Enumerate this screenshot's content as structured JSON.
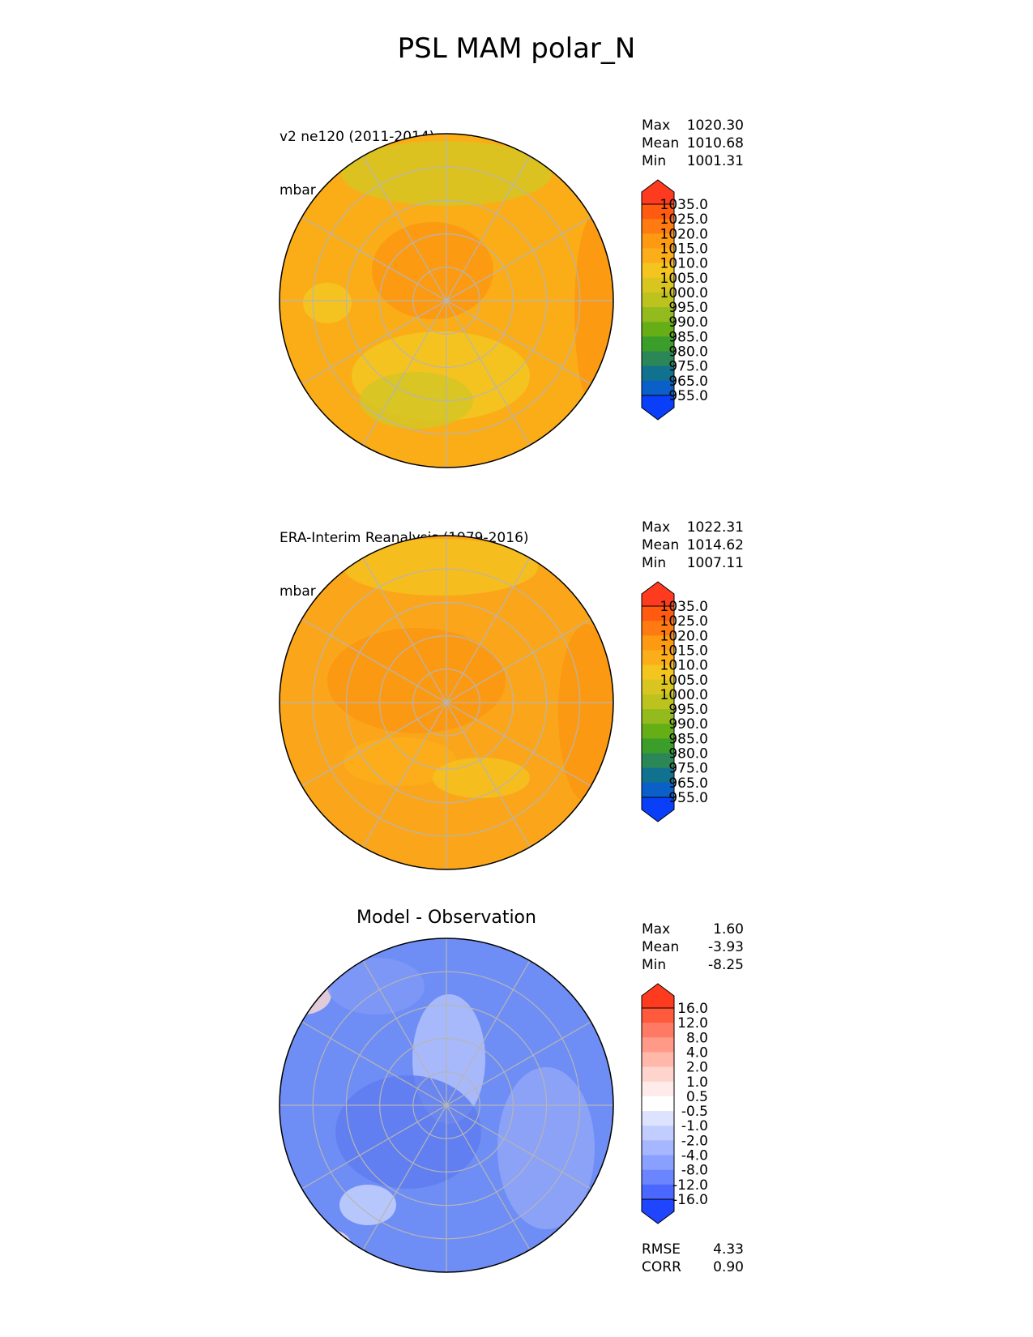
{
  "figure_title": "PSL MAM polar_N",
  "panels": [
    {
      "title_line1": "v2 ne120 (2011-2014)",
      "title_line2": "mbar",
      "stats": [
        {
          "label": "Max",
          "value": "1020.30"
        },
        {
          "label": "Mean",
          "value": "1010.68"
        },
        {
          "label": "Min",
          "value": "1001.31"
        }
      ],
      "colorbar": {
        "labels": [
          "1035.0",
          "1025.0",
          "1020.0",
          "1015.0",
          "1010.0",
          "1005.0",
          "1000.0",
          "995.0",
          "990.0",
          "985.0",
          "980.0",
          "975.0",
          "965.0",
          "955.0"
        ],
        "colors": [
          "#ff3b1f",
          "#ff5a10",
          "#ff7a10",
          "#fd9a12",
          "#fcae1a",
          "#f4c41f",
          "#d9c51f",
          "#bcc31f",
          "#93bb1e",
          "#66ae16",
          "#3c9e2a",
          "#2c8758",
          "#10728e",
          "#0a5fc8",
          "#0a3ffa"
        ]
      },
      "map_fill": "#fbad18"
    },
    {
      "title_line1": "ERA-Interim Reanalysis (1979-2016)",
      "title_line2": "mbar",
      "stats": [
        {
          "label": "Max",
          "value": "1022.31"
        },
        {
          "label": "Mean",
          "value": "1014.62"
        },
        {
          "label": "Min",
          "value": "1007.11"
        }
      ],
      "colorbar": {
        "labels": [
          "1035.0",
          "1025.0",
          "1020.0",
          "1015.0",
          "1010.0",
          "1005.0",
          "1000.0",
          "995.0",
          "990.0",
          "985.0",
          "980.0",
          "975.0",
          "965.0",
          "955.0"
        ],
        "colors": [
          "#ff3b1f",
          "#ff5a10",
          "#ff7a10",
          "#fd9a12",
          "#fcae1a",
          "#f4c41f",
          "#d9c51f",
          "#bcc31f",
          "#93bb1e",
          "#66ae16",
          "#3c9e2a",
          "#2c8758",
          "#10728e",
          "#0a5fc8",
          "#0a3ffa"
        ]
      },
      "map_fill": "#fba61a"
    },
    {
      "title_line1": "Model - Observation",
      "stats": [
        {
          "label": "Max",
          "value": "1.60"
        },
        {
          "label": "Mean",
          "value": "-3.93"
        },
        {
          "label": "Min",
          "value": "-8.25"
        }
      ],
      "colorbar": {
        "labels": [
          "16.0",
          "12.0",
          "8.0",
          "4.0",
          "2.0",
          "1.0",
          "0.5",
          "-0.5",
          "-1.0",
          "-2.0",
          "-4.0",
          "-8.0",
          "-12.0",
          "-16.0"
        ],
        "colors": [
          "#ff3b1f",
          "#ff5a3c",
          "#ff7a64",
          "#ff9a88",
          "#ffb8aa",
          "#ffd4cc",
          "#ffecea",
          "#ffffff",
          "#dde3ff",
          "#c2cdff",
          "#a6b6ff",
          "#8aa0ff",
          "#6b85ff",
          "#4a68ff",
          "#1f45ff"
        ]
      },
      "map_fill": "#6f8ef5",
      "metrics": [
        {
          "label": "RMSE",
          "value": "4.33"
        },
        {
          "label": "CORR",
          "value": "0.90"
        }
      ]
    }
  ],
  "chart_data": [
    {
      "type": "heatmap",
      "title": "v2 ne120 (2011-2014)",
      "units": "mbar",
      "projection": "north-polar-stereographic",
      "summary": {
        "max": 1020.3,
        "mean": 1010.68,
        "min": 1001.31
      },
      "levels": [
        955,
        965,
        975,
        980,
        985,
        990,
        995,
        1000,
        1005,
        1010,
        1015,
        1020,
        1025,
        1035
      ]
    },
    {
      "type": "heatmap",
      "title": "ERA-Interim Reanalysis (1979-2016)",
      "units": "mbar",
      "projection": "north-polar-stereographic",
      "summary": {
        "max": 1022.31,
        "mean": 1014.62,
        "min": 1007.11
      },
      "levels": [
        955,
        965,
        975,
        980,
        985,
        990,
        995,
        1000,
        1005,
        1010,
        1015,
        1020,
        1025,
        1035
      ]
    },
    {
      "type": "heatmap",
      "title": "Model - Observation",
      "projection": "north-polar-stereographic",
      "summary": {
        "max": 1.6,
        "mean": -3.93,
        "min": -8.25,
        "rmse": 4.33,
        "corr": 0.9
      },
      "levels": [
        -16,
        -12,
        -8,
        -4,
        -2,
        -1,
        -0.5,
        0.5,
        1,
        2,
        4,
        8,
        12,
        16
      ]
    }
  ]
}
